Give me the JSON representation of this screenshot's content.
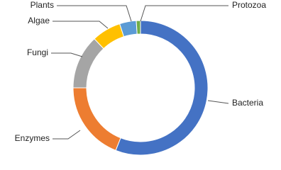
{
  "chart_data": {
    "type": "donut",
    "categories": [
      "Bacteria",
      "Enzymes",
      "Fungi",
      "Algae",
      "Plants",
      "Protozoa"
    ],
    "values": [
      56,
      19,
      13,
      7,
      4,
      1
    ],
    "colors": [
      "#4472c4",
      "#ed7d31",
      "#a5a5a5",
      "#ffc000",
      "#5b9bd5",
      "#70ad47"
    ]
  }
}
